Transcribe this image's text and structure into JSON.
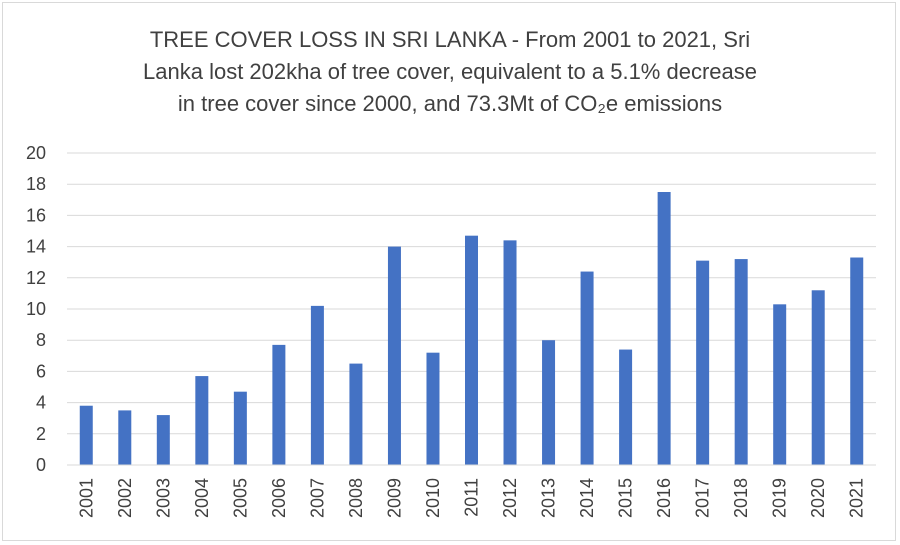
{
  "chart_data": {
    "type": "bar",
    "title_lines": [
      "TREE COVER LOSS IN SRI LANKA - From 2001 to 2021, Sri",
      "Lanka lost 202kha of tree cover, equivalent to a 5.1% decrease",
      "in tree cover since 2000, and 73.3Mt of CO₂e emissions"
    ],
    "categories": [
      "2001",
      "2002",
      "2003",
      "2004",
      "2005",
      "2006",
      "2007",
      "2008",
      "2009",
      "2010",
      "2011",
      "2012",
      "2013",
      "2014",
      "2015",
      "2016",
      "2017",
      "2018",
      "2019",
      "2020",
      "2021"
    ],
    "values": [
      3.8,
      3.5,
      3.2,
      5.7,
      4.7,
      7.7,
      10.2,
      6.5,
      14.0,
      7.2,
      14.7,
      14.4,
      8.0,
      12.4,
      7.4,
      17.5,
      13.1,
      13.2,
      10.3,
      11.2,
      13.3
    ],
    "y_ticks": [
      0,
      2,
      4,
      6,
      8,
      10,
      12,
      14,
      16,
      18,
      20
    ],
    "ylim": [
      0,
      20
    ],
    "xlabel": "",
    "ylabel": "",
    "grid": true,
    "legend": "none",
    "bar_color": "#4472c4",
    "grid_color": "#d9d9d9",
    "text_color": "#404040"
  }
}
